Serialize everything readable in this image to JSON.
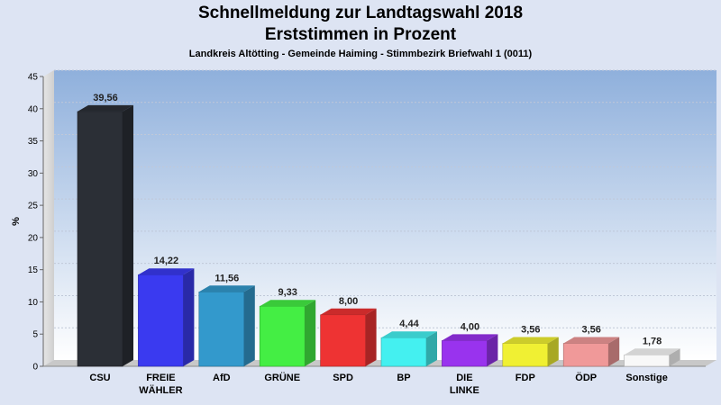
{
  "header": {
    "title_line1": "Schnellmeldung zur Landtagswahl 2018",
    "title_line2": "Erststimmen in Prozent",
    "subtitle": "Landkreis Altötting - Gemeinde Haiming - Stimmbezirk Briefwahl 1 (0011)"
  },
  "chart_data": {
    "type": "bar",
    "title": "Schnellmeldung zur Landtagswahl 2018 — Erststimmen in Prozent",
    "subtitle": "Landkreis Altötting - Gemeinde Haiming - Stimmbezirk Briefwahl 1 (0011)",
    "ylabel": "%",
    "ylim": [
      0,
      45
    ],
    "yticks": [
      0,
      5,
      10,
      15,
      20,
      25,
      30,
      35,
      40,
      45
    ],
    "grid": true,
    "categories": [
      [
        "CSU"
      ],
      [
        "FREIE",
        "WÄHLER"
      ],
      [
        "AfD"
      ],
      [
        "GRÜNE"
      ],
      [
        "SPD"
      ],
      [
        "BP"
      ],
      [
        "DIE",
        "LINKE"
      ],
      [
        "FDP"
      ],
      [
        "ÖDP"
      ],
      [
        "Sonstige"
      ]
    ],
    "values": [
      39.56,
      14.22,
      11.56,
      9.33,
      8.0,
      4.44,
      4.0,
      3.56,
      3.56,
      1.78
    ],
    "value_labels": [
      "39,56",
      "14,22",
      "11,56",
      "9,33",
      "8,00",
      "4,44",
      "4,00",
      "3,56",
      "3,56",
      "1,78"
    ],
    "colors": [
      "#2b2f36",
      "#3a3af0",
      "#3399cc",
      "#44ee44",
      "#ee3333",
      "#44f0f0",
      "#9933ee",
      "#f0f033",
      "#f09999",
      "#f8f8f8"
    ]
  }
}
